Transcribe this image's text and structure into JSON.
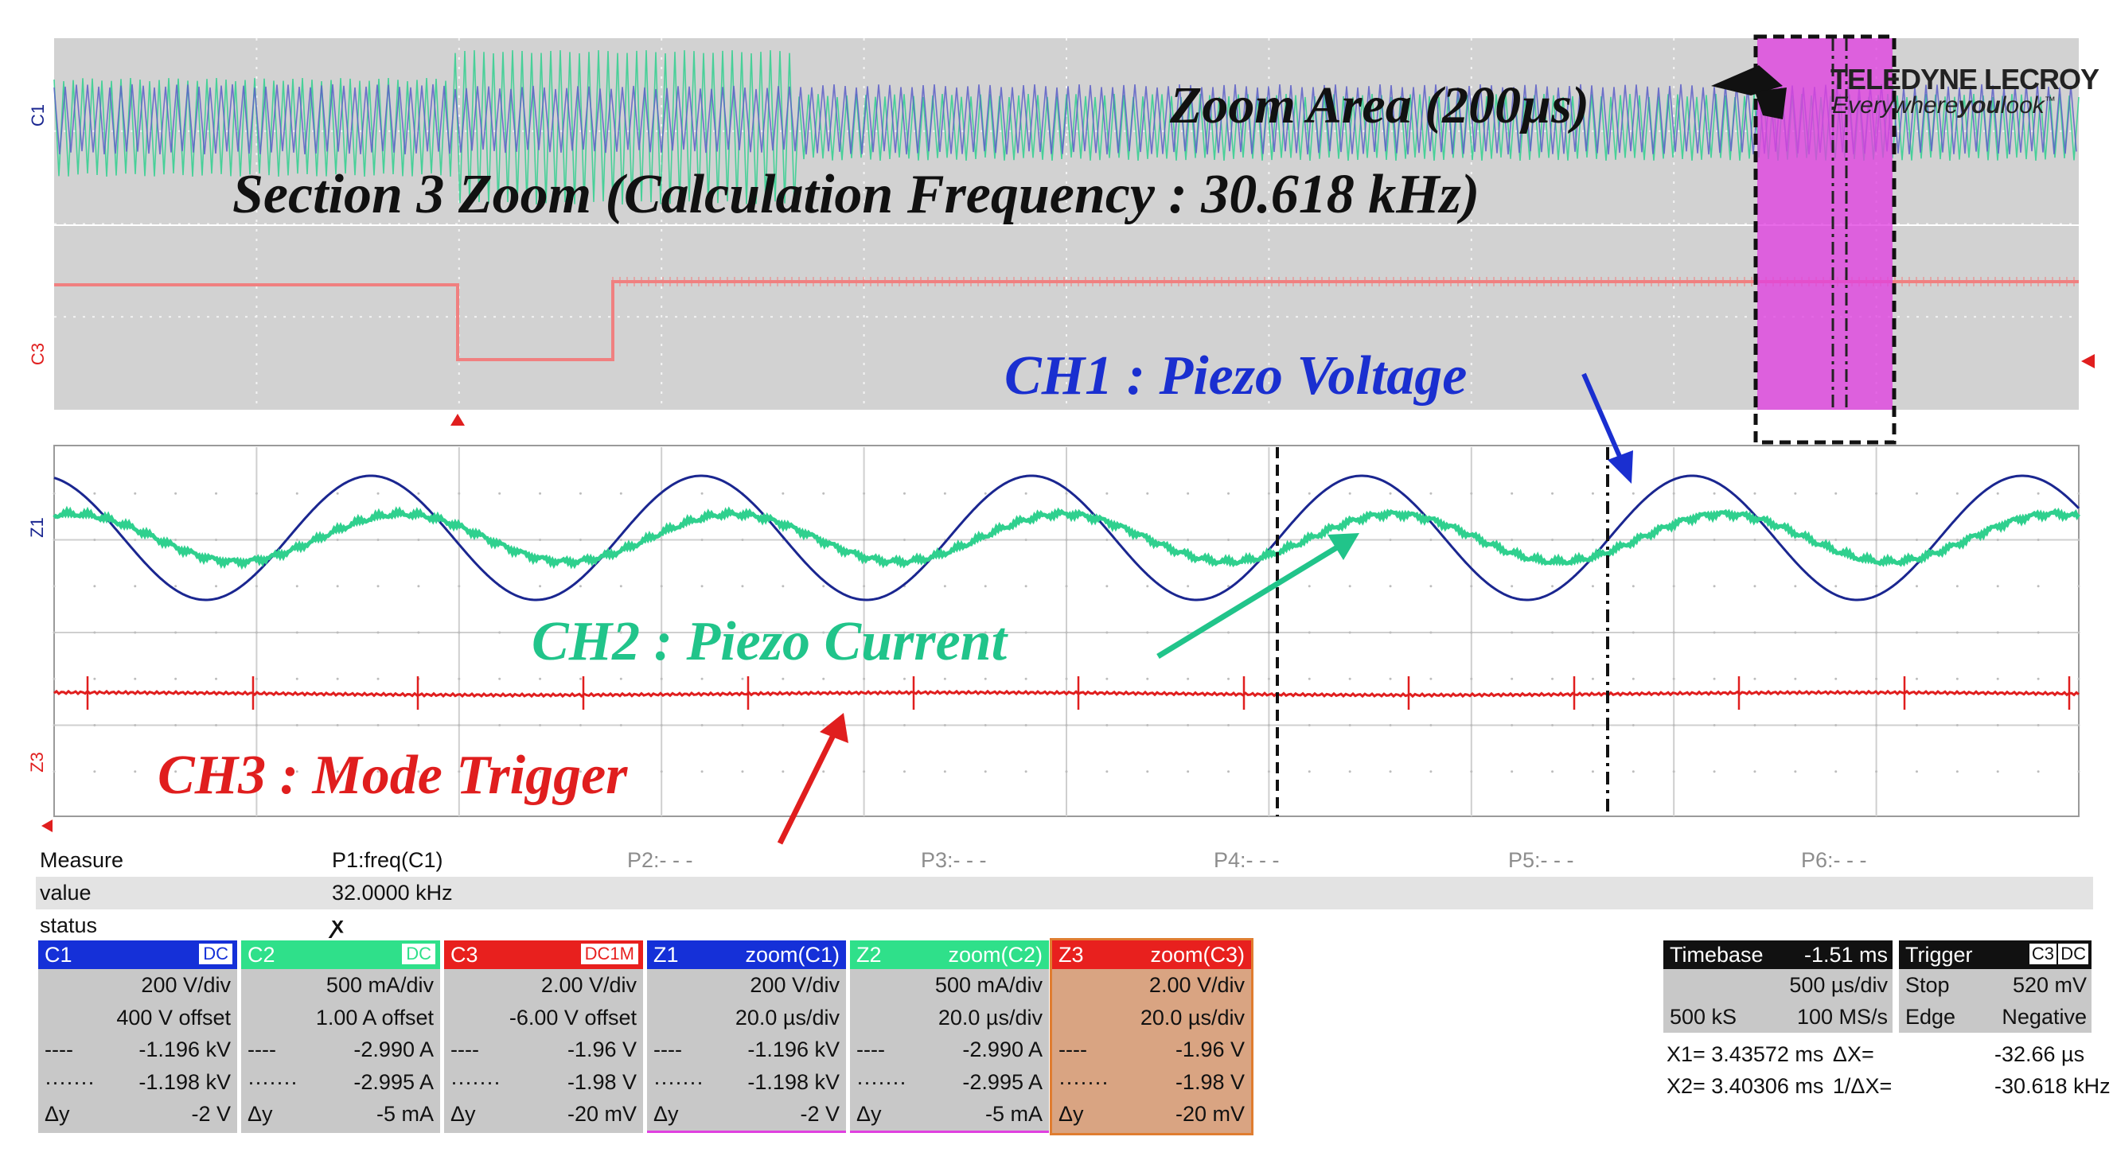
{
  "brand": {
    "name_prefix": "TELE",
    "name_main": "DYNE LECROY",
    "tagline_1": "Every",
    "tagline_2": "where",
    "tagline_3": "you",
    "tagline_4": "look",
    "tm": "™"
  },
  "annotations": {
    "zoom_area": "Zoom Area (200µs)",
    "section_zoom": "Section 3 Zoom (Calculation Frequency : 30.618 kHz)",
    "ch1": "CH1 : Piezo Voltage",
    "ch2": "CH2 : Piezo Current",
    "ch3": "CH3 : Mode Trigger"
  },
  "trace_labels": {
    "c1": "C1",
    "c3": "C3",
    "z1": "Z1",
    "z3": "Z3"
  },
  "measure": {
    "row_measure": "Measure",
    "row_value": "value",
    "row_status": "status",
    "p1_label": "P1:freq(C1)",
    "p1_value": "32.0000 kHz",
    "status_symbol": "ꭗ",
    "p2": "P2:- - -",
    "p3": "P3:- - -",
    "p4": "P4:- - -",
    "p5": "P5:- - -",
    "p6": "P6:- - -"
  },
  "channels": [
    {
      "name": "C1",
      "tag": "DC",
      "line1": "200 V/div",
      "line2": "400 V offset",
      "dash_val": "-1.196 kV",
      "dot_val": "-1.198 kV",
      "dy_val": "-2 V",
      "color": "#1530d8"
    },
    {
      "name": "C2",
      "tag": "DC",
      "line1": "500 mA/div",
      "line2": "1.00 A offset",
      "dash_val": "-2.990 A",
      "dot_val": "-2.995 A",
      "dy_val": "-5 mA",
      "color": "#2fe08a"
    },
    {
      "name": "C3",
      "tag": "DC1M",
      "line1": "2.00 V/div",
      "line2": "-6.00 V offset",
      "dash_val": "-1.96 V",
      "dot_val": "-1.98 V",
      "dy_val": "-20 mV",
      "color": "#e8201e"
    },
    {
      "name": "Z1",
      "tag": "zoom(C1)",
      "line1": "200 V/div",
      "line2": "20.0 µs/div",
      "dash_val": "-1.196 kV",
      "dot_val": "-1.198 kV",
      "dy_val": "-2 V",
      "color": "#1530d8"
    },
    {
      "name": "Z2",
      "tag": "zoom(C2)",
      "line1": "500 mA/div",
      "line2": "20.0 µs/div",
      "dash_val": "-2.990 A",
      "dot_val": "-2.995 A",
      "dy_val": "-5 mA",
      "color": "#2fe08a"
    },
    {
      "name": "Z3",
      "tag": "zoom(C3)",
      "line1": "2.00 V/div",
      "line2": "20.0 µs/div",
      "dash_val": "-1.96 V",
      "dot_val": "-1.98 V",
      "dy_val": "-20 mV",
      "color": "#e8201e"
    }
  ],
  "row_markers": {
    "dash": "----",
    "dot": "·······",
    "dy": "Δy"
  },
  "timebase": {
    "title": "Timebase",
    "delay": "-1.51 ms",
    "per_div": "500 µs/div",
    "samples": "500 kS",
    "rate": "100 MS/s"
  },
  "trigger": {
    "title": "Trigger",
    "source": "C3",
    "coupling": "DC",
    "mode": "Stop",
    "level": "520 mV",
    "type": "Edge",
    "slope": "Negative"
  },
  "cursors": {
    "x1": "X1= 3.43572 ms",
    "dx_label": "ΔX=",
    "dx": "-32.66 µs",
    "x2": "X2= 3.40306 ms",
    "inv_dx_label": "1/ΔX=",
    "inv_dx": "-30.618 kHz"
  },
  "colors": {
    "ch1": "#1a2690",
    "ch2": "#2fd08e",
    "ch3": "#e01e1e",
    "zoom_highlight": "#e040e0",
    "grid_bg": "#d2d2d2"
  }
}
